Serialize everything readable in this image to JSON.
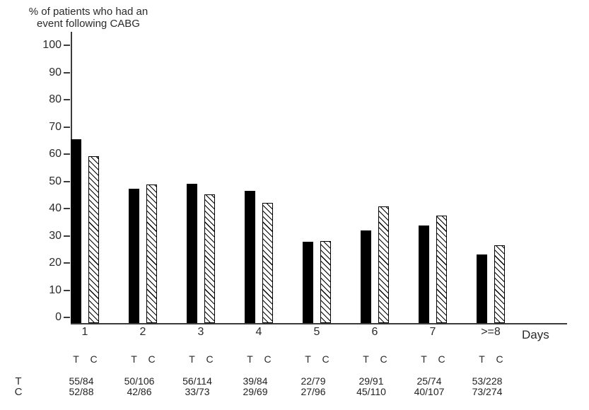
{
  "title": {
    "line1": "% of patients who had an",
    "line2": "event following CABG"
  },
  "xaxis_label": "Days",
  "colors": {
    "bar_treatment": "#000000",
    "bar_control_hatch": "#000000",
    "axis": "#3c3c3c",
    "text": "#2a2a2a",
    "background": "#ffffff"
  },
  "chart_data": {
    "type": "bar",
    "title": "% of patients who had an event following CABG",
    "ylabel": "% of patients who had an event following CABG",
    "xlabel": "Days",
    "ylim": [
      0,
      100
    ],
    "yticks": [
      0,
      10,
      20,
      30,
      40,
      50,
      60,
      70,
      80,
      90,
      100
    ],
    "grid": false,
    "legend": "none",
    "categories": [
      "1",
      "2",
      "3",
      "4",
      "5",
      "6",
      "7",
      ">=8"
    ],
    "pair_labels": [
      "T",
      "C"
    ],
    "series": [
      {
        "name": "T",
        "style": "solid-black",
        "values": [
          65.5,
          47.2,
          49.1,
          46.4,
          27.8,
          31.9,
          33.8,
          23.2
        ],
        "fractions": [
          "55/84",
          "50/106",
          "56/114",
          "39/84",
          "22/79",
          "29/91",
          "25/74",
          "53/228"
        ]
      },
      {
        "name": "C",
        "style": "diagonal-hatch",
        "values": [
          59.1,
          48.8,
          45.2,
          42.0,
          28.1,
          40.9,
          37.4,
          26.6
        ],
        "fractions": [
          "52/88",
          "42/86",
          "33/73",
          "29/69",
          "27/96",
          "45/110",
          "40/107",
          "73/274"
        ]
      }
    ]
  },
  "table": {
    "row_labels": [
      "T",
      "C"
    ],
    "rows": [
      [
        "55/84",
        "50/106",
        "56/114",
        "39/84",
        "22/79",
        "29/91",
        "25/74",
        "53/228"
      ],
      [
        "52/88",
        "42/86",
        "33/73",
        "29/69",
        "27/96",
        "45/110",
        "40/107",
        "73/274"
      ]
    ]
  }
}
